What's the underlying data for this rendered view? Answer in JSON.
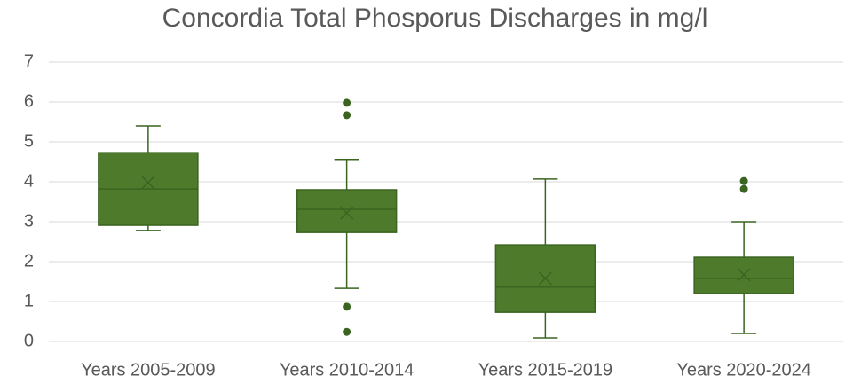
{
  "chart_data": {
    "type": "box",
    "title": "Concordia Total Phosporus Discharges in mg/l",
    "categories": [
      "Years 2005-2009",
      "Years 2010-2014",
      "Years 2015-2019",
      "Years 2020-2024"
    ],
    "color": "#4e7a2b",
    "boxes": [
      {
        "min": 2.78,
        "q1": 2.91,
        "median": 3.82,
        "q3": 4.73,
        "max": 5.4,
        "mean": 3.98
      },
      {
        "min": 1.33,
        "q1": 2.73,
        "median": 3.31,
        "q3": 3.8,
        "max": 4.56,
        "mean": 3.22,
        "outliers": [
          5.98,
          5.67,
          0.87,
          0.24
        ]
      },
      {
        "min": 0.09,
        "q1": 0.73,
        "median": 1.36,
        "q3": 2.42,
        "max": 4.07,
        "mean": 1.58
      },
      {
        "min": 0.2,
        "q1": 1.2,
        "median": 1.58,
        "q3": 2.11,
        "max": 3.0,
        "mean": 1.67,
        "outliers": [
          4.02,
          3.82
        ]
      }
    ],
    "ylim": [
      0,
      7
    ],
    "yticks": [
      0,
      1,
      2,
      3,
      4,
      5,
      6,
      7
    ],
    "grid": true
  }
}
